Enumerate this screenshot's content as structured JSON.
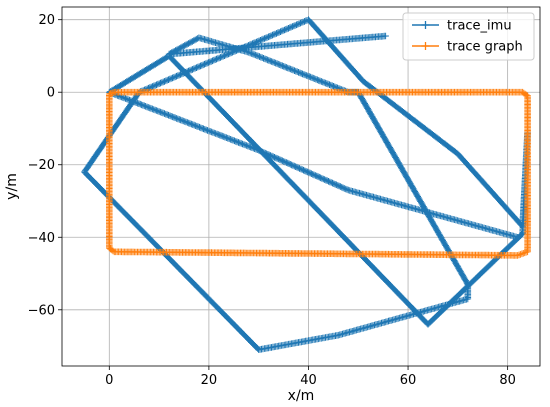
{
  "chart_data": {
    "type": "line",
    "xlabel": "x/m",
    "ylabel": "y/m",
    "xlim": [
      -9.5,
      86.5
    ],
    "ylim": [
      -75.5,
      23.5
    ],
    "xticks": [
      0,
      20,
      40,
      60,
      80
    ],
    "yticks": [
      -60,
      -40,
      -20,
      0,
      20
    ],
    "grid": true,
    "legend_position": "top-right",
    "series": [
      {
        "name": "trace_imu",
        "color": "#1f77b4",
        "marker": "+",
        "x": [
          55.5,
          12,
          18,
          28,
          48,
          50,
          72,
          72,
          46,
          30,
          -5,
          6,
          40,
          51,
          70,
          83,
          84,
          83,
          64,
          12,
          0,
          30,
          48,
          82
        ],
        "y": [
          15.5,
          10.5,
          15,
          11,
          0,
          0,
          -53,
          -57,
          -67,
          -71,
          -22,
          0,
          20,
          3,
          -17,
          -37,
          -11,
          -39,
          -64,
          10,
          0,
          -16,
          -27,
          -40
        ]
      },
      {
        "name": "trace graph",
        "color": "#ff7f0e",
        "marker": "+",
        "x": [
          0,
          0,
          1,
          82,
          84,
          84,
          83,
          1,
          0
        ],
        "y": [
          -0.5,
          -43,
          -44,
          -45,
          -44,
          -1,
          0,
          0,
          -0.5
        ]
      }
    ]
  }
}
